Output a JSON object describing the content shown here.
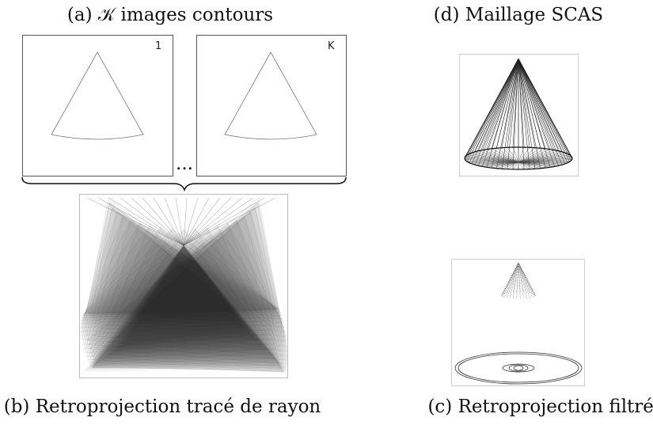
{
  "captions": {
    "a": "(a) 𝒦 images contours",
    "d": "(d) Maillage SCAS",
    "b": "(b) Retroprojection tracé de rayon",
    "c": "(c) Retroprojection filtrée"
  },
  "contour_images": {
    "first_label": "1",
    "last_label": "K",
    "ellipsis": "..."
  }
}
